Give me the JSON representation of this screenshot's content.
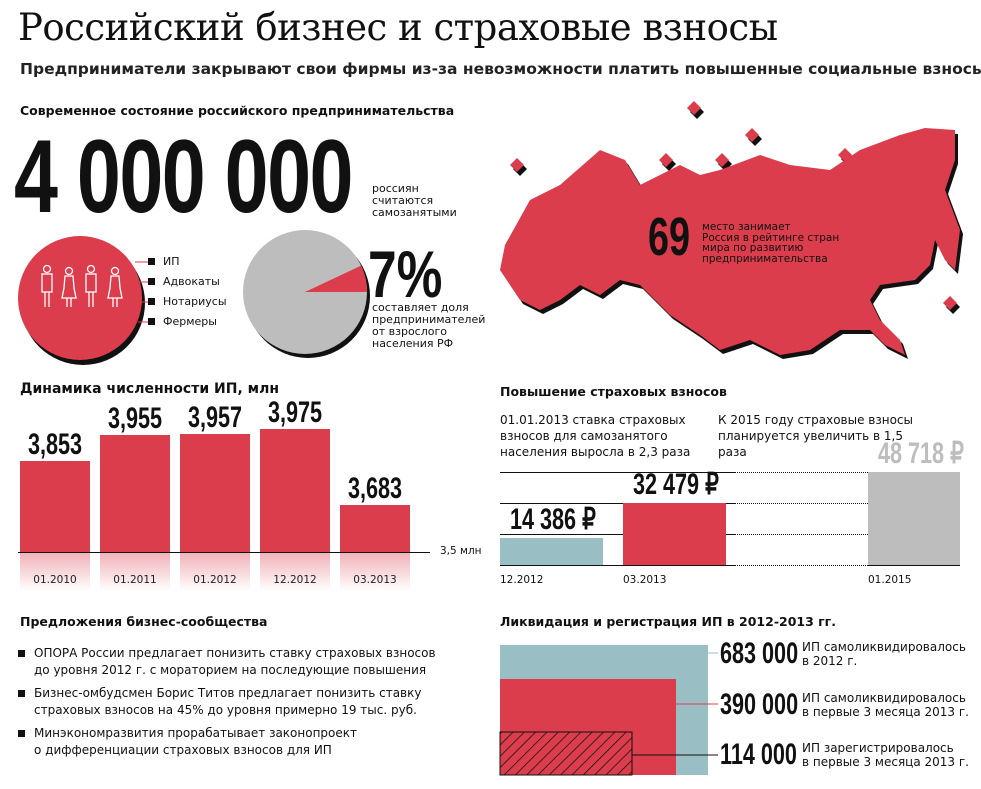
{
  "header": {
    "title": "Российский бизнес и страховые взносы",
    "subtitle": "Предприниматели закрывают свои фирмы из-за невозможности платить повышенные социальные взносы"
  },
  "state": {
    "heading": "Современное состояние российского предпринимательства",
    "big_number": "4 000 000",
    "big_number_caption": [
      "россиян",
      "считаются",
      "самозанятыми"
    ],
    "legend": [
      "ИП",
      "Адвокаты",
      "Нотариусы",
      "Фермеры"
    ],
    "percent": "7%",
    "percent_value": 7,
    "percent_caption": [
      "составляет доля",
      "предпринимателей",
      "от взрослого",
      "населения РФ"
    ],
    "rank": "69",
    "rank_caption": [
      "место занимает",
      "Россия в рейтинге стран",
      "мира по развитию",
      "предпринимательства"
    ]
  },
  "colors": {
    "red": "#dc3d4c",
    "teal": "#99bec3",
    "gray": "#bdbdbd",
    "black": "#111111"
  },
  "chart_data": [
    {
      "type": "bar",
      "title": "Динамика численности ИП, млн",
      "categories": [
        "01.2010",
        "01.2011",
        "01.2012",
        "12.2012",
        "03.2013"
      ],
      "values": [
        3.853,
        3.955,
        3.957,
        3.975,
        3.683
      ],
      "labels": [
        "3,853",
        "3,955",
        "3,957",
        "3,975",
        "3,683"
      ],
      "baseline_label": "3,5 млн",
      "ylim": [
        3.5,
        4.0
      ]
    },
    {
      "type": "bar",
      "title": "Повышение страховых взносов",
      "categories": [
        "12.2012",
        "03.2013",
        "01.2015"
      ],
      "values": [
        14386,
        32479,
        48718
      ],
      "labels": [
        "14 386 ₽",
        "32 479 ₽",
        "48 718 ₽"
      ],
      "notes": [
        "01.01.2013 ставка страховых взносов для самозанятого населения выросла в 2,3 раза",
        "К 2015 году страховые взносы планируется увеличить в 1,5 раза"
      ]
    },
    {
      "type": "area",
      "title": "Ликвидация и регистрация ИП в 2012-2013 гг.",
      "items": [
        {
          "value": "683 000",
          "label": [
            "ИП самоликвидировалось",
            "в 2012 г."
          ]
        },
        {
          "value": "390 000",
          "label": [
            "ИП самоликвидировалось",
            "в первые 3 месяца 2013 г."
          ]
        },
        {
          "value": "114 000",
          "label": [
            "ИП зарегистрировалось",
            "в первые 3 месяца 2013 г."
          ]
        }
      ]
    }
  ],
  "proposals": {
    "heading": "Предложения бизнес-сообщества",
    "items": [
      [
        "ОПОРА России предлагает понизить ставку страховых взносов",
        "до уровня 2012 г. с мораторием на последующие повышения"
      ],
      [
        "Бизнес-омбудсмен Борис Титов предлагает понизить ставку",
        "страховых взносов на 45% до уровня примерно 19 тыс. руб."
      ],
      [
        "Минэкономразвития прорабатывает законопроект",
        "о дифференциации страховых взносов для ИП"
      ]
    ]
  }
}
